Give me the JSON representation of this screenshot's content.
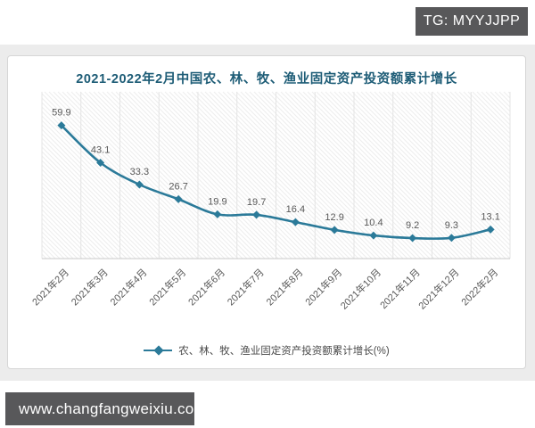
{
  "header": {
    "badge": "TG: MYYJJPP"
  },
  "footer": {
    "url": "www.changfangweixiu.com"
  },
  "chart_data": {
    "type": "line",
    "title": "2021-2022年2月中国农、林、牧、渔业固定资产投资额累计增长",
    "categories": [
      "2021年2月",
      "2021年3月",
      "2021年4月",
      "2021年5月",
      "2021年6月",
      "2021年7月",
      "2021年8月",
      "2021年9月",
      "2021年10月",
      "2021年11月",
      "2021年12月",
      "2022年2月"
    ],
    "series": [
      {
        "name": "农、林、牧、渔业固定资产投资额累计增长(%)",
        "values": [
          59.9,
          43.1,
          33.3,
          26.7,
          19.9,
          19.7,
          16.4,
          12.9,
          10.4,
          9.2,
          9.3,
          13.1
        ]
      }
    ],
    "ylim": [
      0,
      75
    ],
    "xlabel": "",
    "ylabel": "",
    "grid": "vertical-faint",
    "legend_position": "bottom",
    "marker": "diamond",
    "colors": {
      "line": "#2b7a99",
      "marker": "#2b7a99",
      "title": "#1d5c76",
      "data_label": "#595959",
      "tick_label": "#595959",
      "gridline": "#e4e4e4",
      "axis": "#c9c9c9",
      "hatch": "#ededed",
      "badge_bg": "#58585a",
      "badge_text": "#ffffff",
      "card_border": "#d6d6d6",
      "page_band": "#ececec"
    }
  }
}
